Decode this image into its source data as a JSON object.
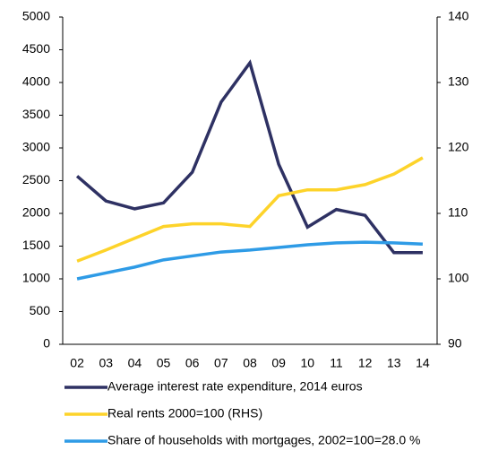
{
  "chart_data": {
    "type": "line",
    "categories": [
      "02",
      "03",
      "04",
      "05",
      "06",
      "07",
      "08",
      "09",
      "10",
      "11",
      "12",
      "13",
      "14"
    ],
    "series": [
      {
        "name": "Average interest rate expenditure, 2014 euros",
        "color": "#2e3163",
        "values": [
          2570,
          2190,
          2070,
          2160,
          2630,
          3700,
          4300,
          2750,
          1790,
          2060,
          1970,
          1400,
          1400
        ]
      },
      {
        "name": "Real rents 2000=100 (RHS)",
        "color": "#fdd32a",
        "axis": "y2",
        "values": [
          102.7,
          104.4,
          106.2,
          108.0,
          108.4,
          108.4,
          108.0,
          112.7,
          113.6,
          113.6,
          114.4,
          116.0,
          118.5
        ]
      },
      {
        "name": "Share of households with mortgages, 2002=100=28.0 %",
        "color": "#2e9be6",
        "axis": "y2",
        "values": [
          100,
          100.9,
          101.8,
          102.9,
          103.5,
          104.1,
          104.4,
          104.8,
          105.2,
          105.5,
          105.6,
          105.5,
          105.3
        ]
      }
    ],
    "ylim": [
      0,
      5000
    ],
    "yticks": [
      0,
      500,
      1000,
      1500,
      2000,
      2500,
      3000,
      3500,
      4000,
      4500,
      5000
    ],
    "y2lim": [
      90,
      140
    ],
    "y2ticks": [
      90,
      100,
      110,
      120,
      130,
      140
    ],
    "grid": false
  }
}
